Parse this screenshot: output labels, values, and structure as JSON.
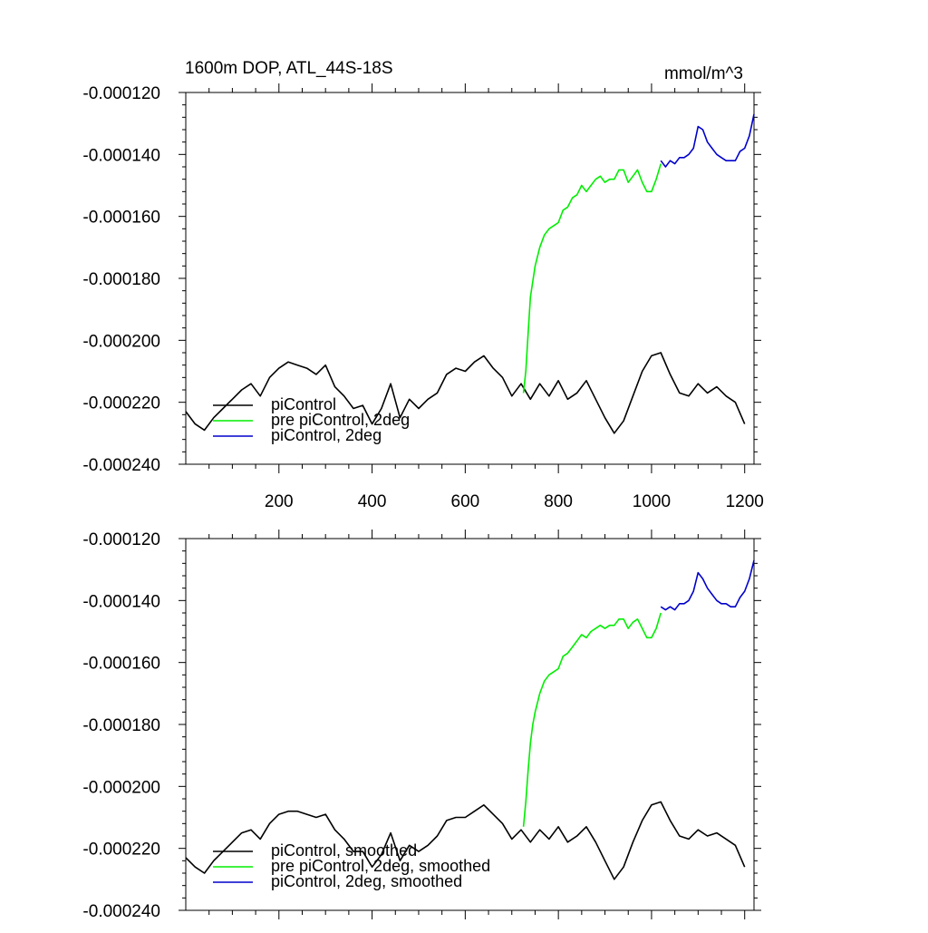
{
  "chart_data": [
    {
      "type": "line",
      "title": "1600m DOP, ATL_44S-18S",
      "units": "mmol/m^3",
      "xlim": [
        0,
        1220
      ],
      "ylim": [
        -0.00024,
        -0.00012
      ],
      "xticks": [
        200,
        400,
        600,
        800,
        1000,
        1200
      ],
      "xtick_labels": [
        "200",
        "400",
        "600",
        "800",
        "1000",
        "1200"
      ],
      "yticks": [
        -0.00012,
        -0.00014,
        -0.00016,
        -0.00018,
        -0.0002,
        -0.00022,
        -0.00024
      ],
      "ytick_labels": [
        "-0.000120",
        "-0.000140",
        "-0.000160",
        "-0.000180",
        "-0.000200",
        "-0.000220",
        "-0.000240"
      ],
      "legend_position": "lower-left",
      "series": [
        {
          "name": "piControl",
          "color": "#000000",
          "x": [
            0,
            20,
            40,
            60,
            80,
            100,
            120,
            140,
            160,
            180,
            200,
            220,
            240,
            260,
            280,
            300,
            320,
            340,
            360,
            380,
            400,
            420,
            440,
            460,
            480,
            500,
            520,
            540,
            560,
            580,
            600,
            620,
            640,
            660,
            680,
            700,
            720,
            740,
            760,
            780,
            800,
            820,
            840,
            860,
            880,
            900,
            920,
            940,
            960,
            980,
            1000,
            1020,
            1040,
            1060,
            1080,
            1100,
            1120,
            1140,
            1160,
            1180,
            1200
          ],
          "y": [
            -0.000223,
            -0.000227,
            -0.000229,
            -0.000225,
            -0.000222,
            -0.000219,
            -0.000216,
            -0.000214,
            -0.000218,
            -0.000212,
            -0.000209,
            -0.000207,
            -0.000208,
            -0.000209,
            -0.000211,
            -0.000208,
            -0.000215,
            -0.000218,
            -0.000222,
            -0.000221,
            -0.000227,
            -0.000222,
            -0.000214,
            -0.000225,
            -0.000219,
            -0.000222,
            -0.000219,
            -0.000217,
            -0.000211,
            -0.000209,
            -0.00021,
            -0.000207,
            -0.000205,
            -0.000209,
            -0.000212,
            -0.000218,
            -0.000214,
            -0.000219,
            -0.000214,
            -0.000218,
            -0.000213,
            -0.000219,
            -0.000217,
            -0.000213,
            -0.000219,
            -0.000225,
            -0.00023,
            -0.000226,
            -0.000218,
            -0.00021,
            -0.000205,
            -0.000204,
            -0.000211,
            -0.000217,
            -0.000218,
            -0.000214,
            -0.000217,
            -0.000215,
            -0.000218,
            -0.00022,
            -0.000227
          ]
        },
        {
          "name": "pre piControl, 2deg",
          "color": "#00ee00",
          "x": [
            725,
            730,
            735,
            740,
            745,
            750,
            760,
            770,
            780,
            790,
            800,
            810,
            820,
            830,
            840,
            850,
            860,
            870,
            880,
            890,
            900,
            910,
            920,
            930,
            940,
            950,
            960,
            970,
            980,
            990,
            1000,
            1010,
            1020
          ],
          "y": [
            -0.000217,
            -0.00021,
            -0.000198,
            -0.000186,
            -0.000181,
            -0.000176,
            -0.00017,
            -0.000166,
            -0.000164,
            -0.000163,
            -0.000162,
            -0.000158,
            -0.000157,
            -0.000154,
            -0.000153,
            -0.00015,
            -0.000152,
            -0.00015,
            -0.000148,
            -0.000147,
            -0.000149,
            -0.000148,
            -0.000148,
            -0.000145,
            -0.000145,
            -0.000149,
            -0.000147,
            -0.000145,
            -0.000149,
            -0.000152,
            -0.000152,
            -0.000148,
            -0.000143
          ]
        },
        {
          "name": "piControl, 2deg",
          "color": "#0000cc",
          "x": [
            1020,
            1030,
            1040,
            1050,
            1060,
            1070,
            1080,
            1090,
            1100,
            1110,
            1120,
            1130,
            1140,
            1150,
            1160,
            1170,
            1180,
            1190,
            1200,
            1210,
            1220
          ],
          "y": [
            -0.000142,
            -0.000144,
            -0.000142,
            -0.000143,
            -0.000141,
            -0.000141,
            -0.00014,
            -0.000138,
            -0.000131,
            -0.000132,
            -0.000136,
            -0.000138,
            -0.00014,
            -0.000141,
            -0.000142,
            -0.000142,
            -0.000142,
            -0.000139,
            -0.000138,
            -0.000134,
            -0.000127
          ]
        }
      ]
    },
    {
      "type": "line",
      "xlim": [
        0,
        1220
      ],
      "ylim": [
        -0.00024,
        -0.00012
      ],
      "yticks": [
        -0.00012,
        -0.00014,
        -0.00016,
        -0.00018,
        -0.0002,
        -0.00022,
        -0.00024
      ],
      "ytick_labels": [
        "-0.000120",
        "-0.000140",
        "-0.000160",
        "-0.000180",
        "-0.000200",
        "-0.000220",
        "-0.000240"
      ],
      "legend_position": "lower-left",
      "series": [
        {
          "name": "piControl, smoothed",
          "color": "#000000",
          "x": [
            0,
            20,
            40,
            60,
            80,
            100,
            120,
            140,
            160,
            180,
            200,
            220,
            240,
            260,
            280,
            300,
            320,
            340,
            360,
            380,
            400,
            420,
            440,
            460,
            480,
            500,
            520,
            540,
            560,
            580,
            600,
            620,
            640,
            660,
            680,
            700,
            720,
            740,
            760,
            780,
            800,
            820,
            840,
            860,
            880,
            900,
            920,
            940,
            960,
            980,
            1000,
            1020,
            1040,
            1060,
            1080,
            1100,
            1120,
            1140,
            1160,
            1180,
            1200
          ],
          "y": [
            -0.000223,
            -0.000226,
            -0.000228,
            -0.000224,
            -0.000221,
            -0.000218,
            -0.000215,
            -0.000214,
            -0.000217,
            -0.000212,
            -0.000209,
            -0.000208,
            -0.000208,
            -0.000209,
            -0.00021,
            -0.000209,
            -0.000214,
            -0.000217,
            -0.000221,
            -0.000221,
            -0.000226,
            -0.000222,
            -0.000215,
            -0.000224,
            -0.000219,
            -0.000221,
            -0.000219,
            -0.000216,
            -0.000211,
            -0.00021,
            -0.00021,
            -0.000208,
            -0.000206,
            -0.000209,
            -0.000212,
            -0.000217,
            -0.000214,
            -0.000218,
            -0.000214,
            -0.000217,
            -0.000213,
            -0.000218,
            -0.000216,
            -0.000213,
            -0.000218,
            -0.000224,
            -0.00023,
            -0.000226,
            -0.000218,
            -0.000211,
            -0.000206,
            -0.000205,
            -0.000211,
            -0.000216,
            -0.000217,
            -0.000214,
            -0.000216,
            -0.000215,
            -0.000217,
            -0.000219,
            -0.000226
          ]
        },
        {
          "name": "pre piControl, 2deg, smoothed",
          "color": "#00ee00",
          "x": [
            725,
            730,
            735,
            740,
            745,
            750,
            760,
            770,
            780,
            790,
            800,
            810,
            820,
            830,
            840,
            850,
            860,
            870,
            880,
            890,
            900,
            910,
            920,
            930,
            940,
            950,
            960,
            970,
            980,
            990,
            1000,
            1010,
            1020
          ],
          "y": [
            -0.000213,
            -0.000205,
            -0.000195,
            -0.000186,
            -0.00018,
            -0.000176,
            -0.00017,
            -0.000166,
            -0.000164,
            -0.000163,
            -0.000162,
            -0.000158,
            -0.000157,
            -0.000155,
            -0.000153,
            -0.000151,
            -0.000152,
            -0.00015,
            -0.000149,
            -0.000148,
            -0.000149,
            -0.000148,
            -0.000148,
            -0.000146,
            -0.000146,
            -0.000149,
            -0.000147,
            -0.000146,
            -0.000149,
            -0.000152,
            -0.000152,
            -0.000149,
            -0.000144
          ]
        },
        {
          "name": "piControl, 2deg, smoothed",
          "color": "#0000cc",
          "x": [
            1020,
            1030,
            1040,
            1050,
            1060,
            1070,
            1080,
            1090,
            1100,
            1110,
            1120,
            1130,
            1140,
            1150,
            1160,
            1170,
            1180,
            1190,
            1200,
            1210,
            1220
          ],
          "y": [
            -0.000142,
            -0.000143,
            -0.000142,
            -0.000143,
            -0.000141,
            -0.000141,
            -0.00014,
            -0.000137,
            -0.000131,
            -0.000133,
            -0.000136,
            -0.000138,
            -0.00014,
            -0.000141,
            -0.000141,
            -0.000142,
            -0.000142,
            -0.000139,
            -0.000137,
            -0.000133,
            -0.000127
          ]
        }
      ]
    }
  ]
}
